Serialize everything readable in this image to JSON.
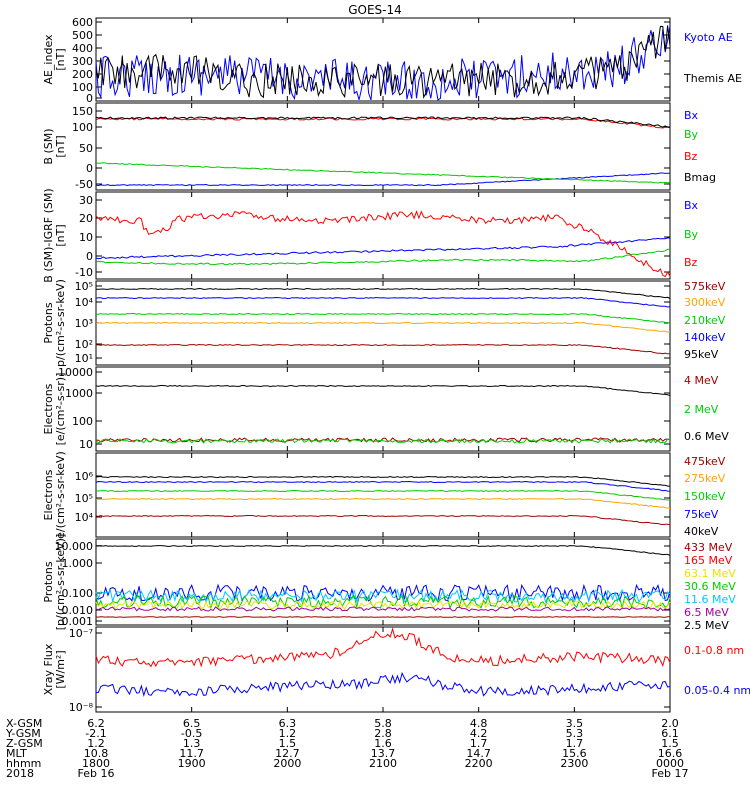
{
  "title": "GOES-14",
  "colors": {
    "black": "#000000",
    "blue": "#0000ff",
    "green": "#00cc00",
    "red": "#ff0000",
    "orange": "#ffa500",
    "yellow": "#e6e600",
    "cyan": "#00c8ff",
    "purple": "#a000a0"
  },
  "panels": [
    {
      "id": "ae",
      "ylabel": [
        "AE_index",
        "[nT]"
      ],
      "ticks": [
        "600",
        "500",
        "400",
        "300",
        "200",
        "100",
        "0"
      ],
      "legend": [
        {
          "label": "Kyoto AE",
          "color": "#0000ff"
        },
        {
          "label": "Themis AE",
          "color": "#000000"
        }
      ]
    },
    {
      "id": "bsm",
      "ylabel": [
        "B (SM)",
        "[nT]"
      ],
      "ticks": [
        "150",
        "100",
        "50",
        "0",
        "-50"
      ],
      "legend": [
        {
          "label": "Bx",
          "color": "#0000ff"
        },
        {
          "label": "By",
          "color": "#00cc00"
        },
        {
          "label": "Bz",
          "color": "#ff0000"
        },
        {
          "label": "Bmag",
          "color": "#000000"
        }
      ]
    },
    {
      "id": "bigrf",
      "ylabel": [
        "B (SM)-IGRF (SM)",
        "[nT]"
      ],
      "ticks": [
        "30",
        "20",
        "10",
        "0",
        "-10"
      ],
      "legend": [
        {
          "label": "Bx",
          "color": "#0000ff"
        },
        {
          "label": "By",
          "color": "#00cc00"
        },
        {
          "label": "Bz",
          "color": "#ff0000"
        }
      ]
    },
    {
      "id": "protons-mag",
      "ylabel": [
        "Protons",
        "p/(cm²-s-sr-keV)"
      ],
      "ticks": [
        "10⁵",
        "10⁴",
        "10³",
        "10²",
        "10¹"
      ],
      "legend": [
        {
          "label": "575keV",
          "color": "#a00000"
        },
        {
          "label": "300keV",
          "color": "#ffa500"
        },
        {
          "label": "210keV",
          "color": "#00cc00"
        },
        {
          "label": "140keV",
          "color": "#0000ff"
        },
        {
          "label": "95keV",
          "color": "#000000"
        }
      ]
    },
    {
      "id": "electrons-epead",
      "ylabel": [
        "Electrons",
        "[e/(cm²-s-sr)]"
      ],
      "ticks": [
        "10000",
        "1000",
        "100",
        "10"
      ],
      "legend": [
        {
          "label": "4 MeV",
          "color": "#a00000"
        },
        {
          "label": "2 MeV",
          "color": "#00cc00"
        },
        {
          "label": "0.6 MeV",
          "color": "#000000"
        }
      ]
    },
    {
      "id": "electrons-mag",
      "ylabel": [
        "Electrons",
        "e/(cm²-s-sr-keV)"
      ],
      "ticks": [
        "10⁶",
        "10⁵",
        "10⁴"
      ],
      "legend": [
        {
          "label": "475keV",
          "color": "#a00000"
        },
        {
          "label": "275keV",
          "color": "#ffa500"
        },
        {
          "label": "150keV",
          "color": "#00cc00"
        },
        {
          "label": "75keV",
          "color": "#0000ff"
        },
        {
          "label": "40keV",
          "color": "#000000"
        }
      ]
    },
    {
      "id": "protons-epead",
      "ylabel": [
        "Protons",
        "[p/(cm²-s-sr-keV)]"
      ],
      "ticks": [
        "10.000",
        "1.000",
        "0.100",
        "0.010",
        "0.001"
      ],
      "legend": [
        {
          "label": "433 MeV",
          "color": "#a00000"
        },
        {
          "label": "165 MeV",
          "color": "#ff0000"
        },
        {
          "label": "63.1 MeV",
          "color": "#e6e600"
        },
        {
          "label": "30.6 MeV",
          "color": "#00cc00"
        },
        {
          "label": "11.6 MeV",
          "color": "#00c8ff"
        },
        {
          "label": "6.5 MeV",
          "color": "#a000a0"
        },
        {
          "label": "2.5 MeV",
          "color": "#000000"
        }
      ]
    },
    {
      "id": "xray",
      "ylabel": [
        "Xray Flux",
        "[W/m²]"
      ],
      "ticks": [
        "10⁻⁷",
        "10⁻⁸"
      ],
      "legend": [
        {
          "label": "0.1-0.8 nm",
          "color": "#ff0000"
        },
        {
          "label": "0.05-0.4 nm",
          "color": "#0000ff"
        }
      ]
    }
  ],
  "xaxis": {
    "row_labels": [
      "X-GSM",
      "Y-GSM",
      "Z-GSM",
      "MLT",
      "hhmm",
      "2018"
    ],
    "columns": [
      {
        "values": [
          "6.2",
          "-2.1",
          "1.2",
          "10.8",
          "1800",
          "Feb 16"
        ]
      },
      {
        "values": [
          "6.5",
          "-0.5",
          "1.3",
          "11.7",
          "1900",
          ""
        ]
      },
      {
        "values": [
          "6.3",
          "1.2",
          "1.5",
          "12.7",
          "2000",
          ""
        ]
      },
      {
        "values": [
          "5.8",
          "2.8",
          "1.6",
          "13.7",
          "2100",
          ""
        ]
      },
      {
        "values": [
          "4.8",
          "4.2",
          "1.7",
          "14.7",
          "2200",
          ""
        ]
      },
      {
        "values": [
          "3.5",
          "5.3",
          "1.7",
          "15.6",
          "2300",
          ""
        ]
      },
      {
        "values": [
          "2.0",
          "6.1",
          "1.5",
          "16.6",
          "0000",
          "Feb 17"
        ]
      }
    ]
  },
  "chart_data": [
    {
      "type": "line",
      "title": "AE_index",
      "ylim": [
        0,
        600
      ],
      "x": [
        "1800",
        "1900",
        "2000",
        "2100",
        "2200",
        "2300",
        "0000"
      ],
      "series": [
        {
          "name": "Kyoto AE",
          "values": [
            80,
            60,
            20,
            50,
            70,
            90,
            480
          ]
        },
        {
          "name": "Themis AE",
          "values": [
            130,
            110,
            60,
            80,
            120,
            220,
            420
          ]
        }
      ]
    },
    {
      "type": "line",
      "title": "B (SM)",
      "ylim": [
        -50,
        150
      ],
      "x": [
        "1800",
        "1900",
        "2000",
        "2100",
        "2200",
        "2300",
        "0000"
      ],
      "series": [
        {
          "name": "Bx",
          "values": [
            -45,
            -45,
            -45,
            -43,
            -40,
            -30,
            -10
          ]
        },
        {
          "name": "By",
          "values": [
            10,
            0,
            -10,
            -20,
            -30,
            -35,
            -35
          ]
        },
        {
          "name": "Bz",
          "values": [
            120,
            115,
            115,
            113,
            110,
            108,
            90
          ]
        },
        {
          "name": "Bmag",
          "values": [
            130,
            125,
            122,
            120,
            118,
            115,
            100
          ]
        }
      ]
    },
    {
      "type": "line",
      "title": "B (SM)-IGRF (SM)",
      "ylim": [
        -10,
        30
      ],
      "x": [
        "1800",
        "1900",
        "2000",
        "2100",
        "2200",
        "2300",
        "0000"
      ],
      "series": [
        {
          "name": "Bx",
          "values": [
            -2,
            -2,
            -1,
            0,
            2,
            4,
            10
          ]
        },
        {
          "name": "By",
          "values": [
            -2,
            -4,
            -4,
            -4,
            -3,
            -2,
            4
          ]
        },
        {
          "name": "Bz",
          "values": [
            19,
            15,
            15,
            16,
            13,
            10,
            -10
          ]
        }
      ]
    },
    {
      "type": "line",
      "title": "Protons",
      "yscale": "log",
      "ylim": [
        10,
        100000
      ],
      "x": [
        "1800",
        "1900",
        "2000",
        "2100",
        "2200",
        "2300",
        "0000"
      ],
      "series": [
        {
          "name": "575keV",
          "values": [
            60000,
            60000,
            60000,
            60000,
            58000,
            55000,
            40000
          ]
        },
        {
          "name": "300keV",
          "values": [
            20000,
            20000,
            20000,
            20000,
            19000,
            18000,
            12000
          ]
        },
        {
          "name": "210keV",
          "values": [
            2500,
            2500,
            2400,
            2400,
            2300,
            2200,
            1500
          ]
        },
        {
          "name": "140keV",
          "values": [
            900,
            900,
            850,
            850,
            800,
            750,
            400
          ]
        },
        {
          "name": "95keV",
          "values": [
            70,
            70,
            65,
            65,
            60,
            55,
            25
          ]
        }
      ]
    },
    {
      "type": "line",
      "title": "Electrons",
      "yscale": "log",
      "ylim": [
        10,
        10000
      ],
      "x": [
        "1800",
        "1900",
        "2000",
        "2100",
        "2200",
        "2300",
        "0000"
      ],
      "series": [
        {
          "name": "4 MeV",
          "values": [
            20,
            20,
            20,
            20,
            20,
            20,
            20
          ]
        },
        {
          "name": "2 MeV",
          "values": [
            19,
            19,
            19,
            19,
            19,
            19,
            19
          ]
        },
        {
          "name": "0.6 MeV",
          "values": [
            2300,
            2300,
            2250,
            2250,
            2200,
            2200,
            1800
          ]
        }
      ]
    },
    {
      "type": "line",
      "title": "Electrons",
      "yscale": "log",
      "ylim": [
        2000,
        3000000
      ],
      "x": [
        "1800",
        "1900",
        "2000",
        "2100",
        "2200",
        "2300",
        "0000"
      ],
      "series": [
        {
          "name": "475keV",
          "values": [
            1000000,
            1000000,
            950000,
            950000,
            900000,
            850000,
            700000
          ]
        },
        {
          "name": "275keV",
          "values": [
            600000,
            600000,
            580000,
            570000,
            550000,
            520000,
            420000
          ]
        },
        {
          "name": "150keV",
          "values": [
            250000,
            250000,
            240000,
            240000,
            230000,
            220000,
            180000
          ]
        },
        {
          "name": "75keV",
          "values": [
            90000,
            90000,
            88000,
            87000,
            85000,
            80000,
            60000
          ]
        },
        {
          "name": "40keV",
          "values": [
            9000,
            9000,
            8800,
            8700,
            8500,
            8000,
            6500
          ]
        }
      ]
    },
    {
      "type": "line",
      "title": "Protons",
      "yscale": "log",
      "ylim": [
        0.001,
        30
      ],
      "x": [
        "1800",
        "1900",
        "2000",
        "2100",
        "2200",
        "2300",
        "0000"
      ],
      "series": [
        {
          "name": "433 MeV",
          "values": [
            20,
            18,
            18,
            17,
            17,
            16,
            12
          ]
        },
        {
          "name": "165 MeV",
          "values": [
            0.1,
            0.1,
            0.1,
            0.1,
            0.1,
            0.1,
            0.1
          ]
        },
        {
          "name": "63.1 MeV",
          "values": [
            0.02,
            0.02,
            0.02,
            0.02,
            0.02,
            0.02,
            0.02
          ]
        },
        {
          "name": "30.6 MeV",
          "values": [
            0.03,
            0.03,
            0.03,
            0.03,
            0.03,
            0.03,
            0.03
          ]
        },
        {
          "name": "11.6 MeV",
          "values": [
            0.08,
            0.08,
            0.08,
            0.08,
            0.08,
            0.08,
            0.08
          ]
        },
        {
          "name": "6.5 MeV",
          "values": [
            0.1,
            0.1,
            0.1,
            0.1,
            0.1,
            0.1,
            0.1
          ]
        },
        {
          "name": "2.5 MeV",
          "values": [
            0.004,
            0.004,
            0.004,
            0.004,
            0.004,
            0.004,
            0.004
          ]
        }
      ]
    },
    {
      "type": "line",
      "title": "Xray Flux",
      "yscale": "log",
      "ylim": [
        1e-08,
        1e-07
      ],
      "x": [
        "1800",
        "1900",
        "2000",
        "2100",
        "2200",
        "2300",
        "0000"
      ],
      "series": [
        {
          "name": "0.1-0.8 nm",
          "values": [
            4e-08,
            4.5e-08,
            5e-08,
            9e-08,
            6e-08,
            4.5e-08,
            4e-08
          ]
        },
        {
          "name": "0.05-0.4 nm",
          "values": [
            1.8e-08,
            2e-08,
            2e-08,
            2.5e-08,
            2e-08,
            1.8e-08,
            1.8e-08
          ]
        }
      ]
    }
  ]
}
